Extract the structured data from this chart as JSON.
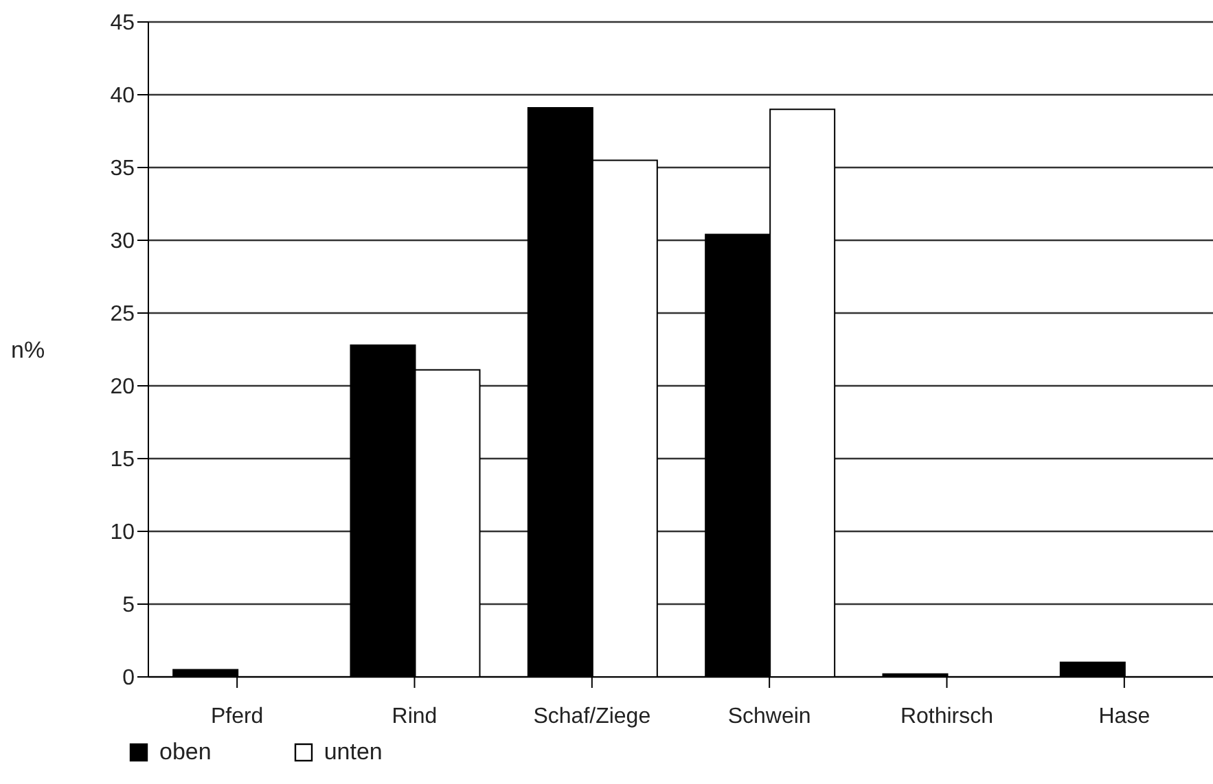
{
  "chart_data": {
    "type": "bar",
    "ylabel": "n%",
    "categories": [
      "Pferd",
      "Rind",
      "Schaf/Ziege",
      "Schwein",
      "Rothirsch",
      "Hase"
    ],
    "series": [
      {
        "name": "oben",
        "color": "#000000",
        "values": [
          0.5,
          22.8,
          39.1,
          30.4,
          0.2,
          1.0
        ]
      },
      {
        "name": "unten",
        "color": "#ffffff",
        "values": [
          0,
          21.1,
          35.5,
          39.0,
          0,
          0
        ]
      }
    ],
    "ylim": [
      0,
      45
    ],
    "yticks": [
      0,
      5,
      10,
      15,
      20,
      25,
      30,
      35,
      40,
      45
    ],
    "grid": "y",
    "legend": "bottom left"
  }
}
